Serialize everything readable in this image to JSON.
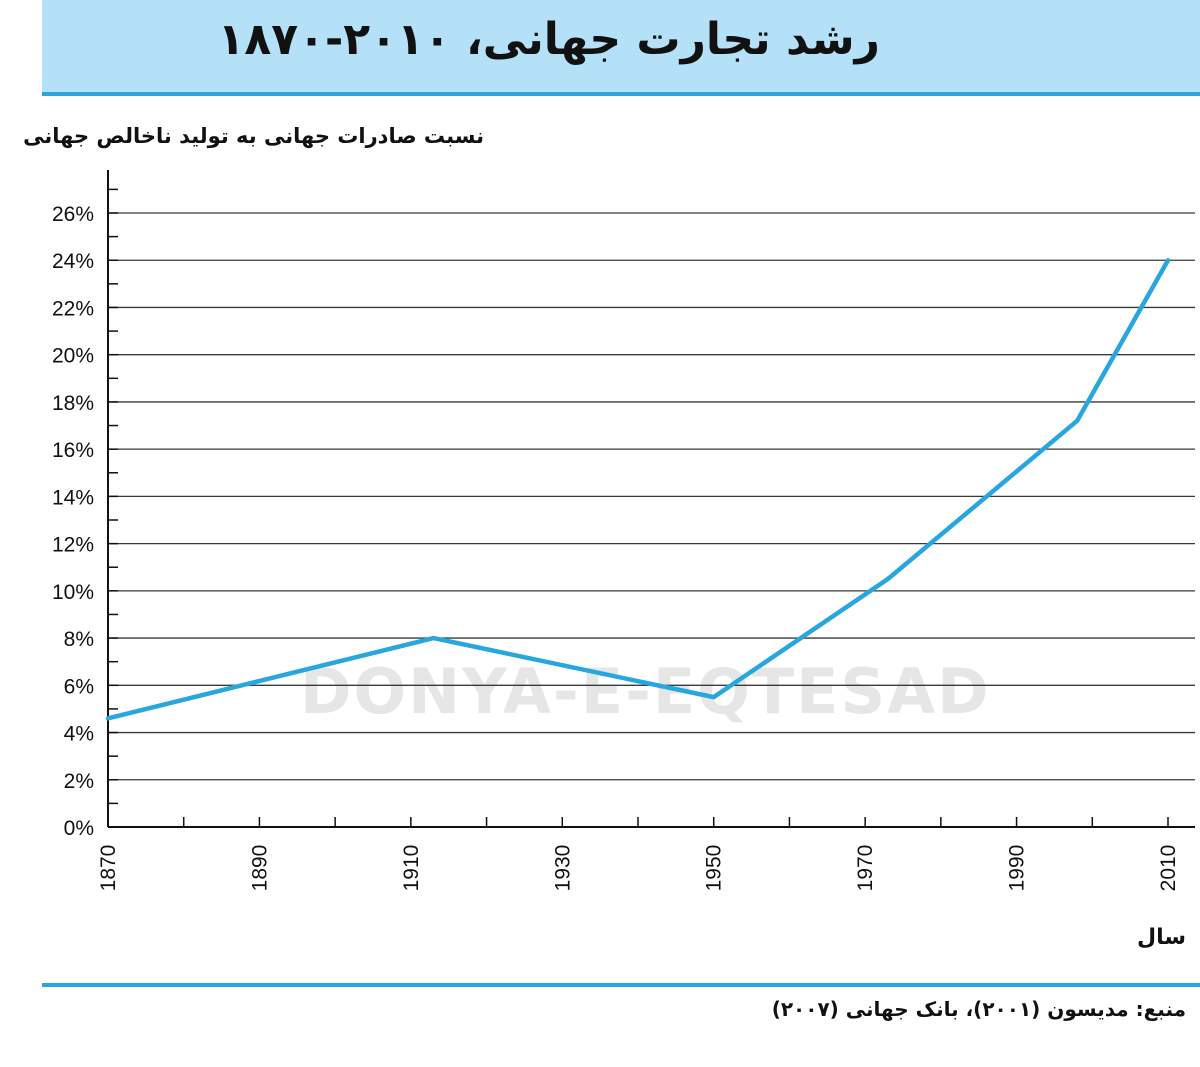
{
  "title": "رشد تجارت جهانی، ۲۰۱۰-۱۸۷۰",
  "watermark": "DONYA-E-EQTESAD",
  "source": "منبع: مدیسون (۲۰۰۱)، بانک جهانی (۲۰۰۷)",
  "colors": {
    "banner": "#b4e1f8",
    "accent": "#27a6df",
    "line": "#27a6df"
  },
  "chart_data": {
    "type": "line",
    "ylabel": "نسبت صادرات جهانی به تولید ناخالص جهانی",
    "xlabel": "سال",
    "xlim": [
      1870,
      2010
    ],
    "ylim": [
      0,
      26
    ],
    "x_ticks": [
      "1870",
      "1890",
      "1910",
      "1930",
      "1950",
      "1970",
      "1990",
      "2010"
    ],
    "y_ticks": [
      "0%",
      "2%",
      "4%",
      "6%",
      "8%",
      "10%",
      "12%",
      "14%",
      "16%",
      "18%",
      "20%",
      "22%",
      "24%",
      "26%"
    ],
    "grid": true,
    "series": [
      {
        "x": [
          1870,
          1913,
          1950,
          1973,
          1998,
          2010
        ],
        "y": [
          4.6,
          8.0,
          5.5,
          10.5,
          17.2,
          24.0
        ]
      }
    ]
  }
}
